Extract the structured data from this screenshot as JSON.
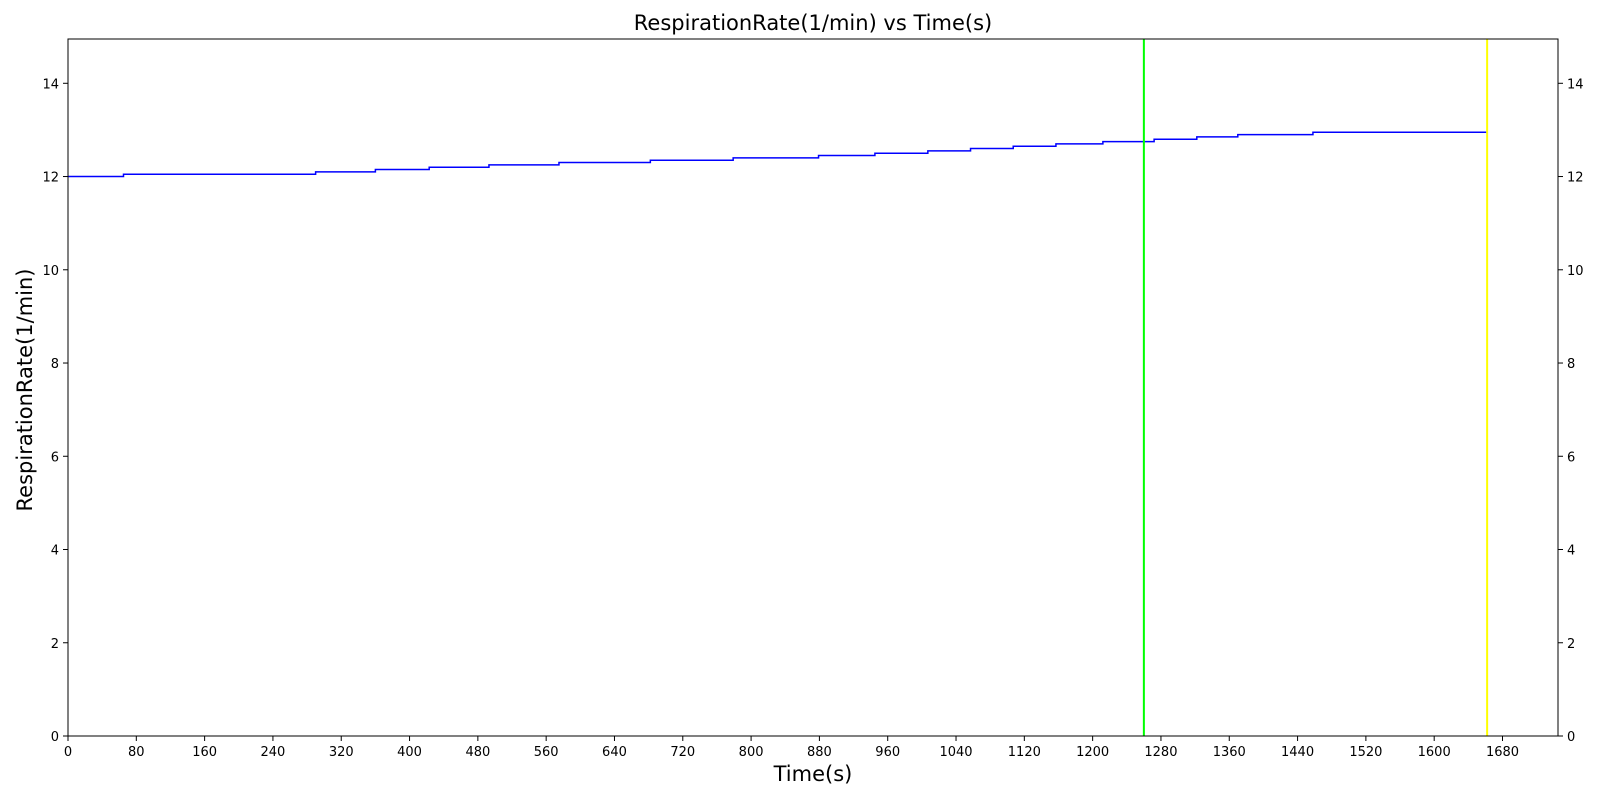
{
  "chart_data": {
    "type": "line",
    "title": "RespirationRate(1/min) vs Time(s)",
    "xlabel": "Time(s)",
    "ylabel": "RespirationRate(1/min)",
    "xlim": [
      0,
      1745
    ],
    "ylim": [
      0,
      14.95
    ],
    "x_ticks": [
      0,
      80,
      160,
      240,
      320,
      400,
      480,
      560,
      640,
      720,
      800,
      880,
      960,
      1040,
      1120,
      1200,
      1280,
      1360,
      1440,
      1520,
      1600,
      1680
    ],
    "y_ticks": [
      0,
      2,
      4,
      6,
      8,
      10,
      12,
      14
    ],
    "right_axis_ticks": true,
    "grid": false,
    "series": [
      {
        "color": "#0000ff",
        "step": true,
        "points": [
          [
            0,
            12.0
          ],
          [
            65,
            12.05
          ],
          [
            290,
            12.1
          ],
          [
            360,
            12.15
          ],
          [
            423,
            12.2
          ],
          [
            493,
            12.25
          ],
          [
            575,
            12.3
          ],
          [
            682,
            12.35
          ],
          [
            779,
            12.4
          ],
          [
            879,
            12.45
          ],
          [
            945,
            12.5
          ],
          [
            1007,
            12.55
          ],
          [
            1057,
            12.6
          ],
          [
            1107,
            12.65
          ],
          [
            1157,
            12.7
          ],
          [
            1212,
            12.75
          ],
          [
            1272,
            12.8
          ],
          [
            1322,
            12.85
          ],
          [
            1370,
            12.9
          ],
          [
            1458,
            12.95
          ],
          [
            1662,
            12.95
          ]
        ]
      }
    ],
    "vertical_lines": [
      {
        "x": 1260,
        "color": "#00ff00"
      },
      {
        "x": 1662,
        "color": "#ffff00"
      }
    ]
  }
}
